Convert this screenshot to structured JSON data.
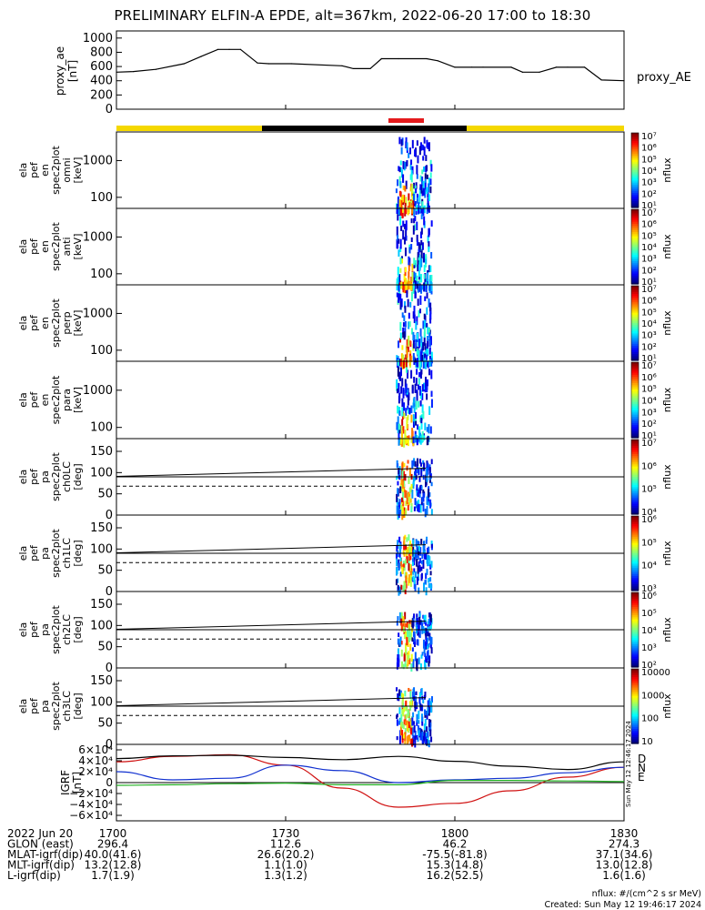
{
  "title": "PRELIMINARY ELFIN-A EPDE, alt=367km, 2022-06-20 17:00 to 18:30",
  "footer": {
    "units": "nflux: #/(cm^2 s sr MeV)",
    "created": "Created: Sun May 12 19:46:17 2024",
    "side_stamp": "Sun May 12 12:46:17 2024"
  },
  "colors": {
    "bar_yellow": "#f5d800",
    "bar_black": "#000000",
    "bar_red": "#e41a1c",
    "b_north": "#d01010",
    "b_east": "#20b020",
    "b_down": "#1030d0",
    "b_total": "#000000"
  },
  "labels": {
    "proxy_ae_side": "proxy_AE",
    "colorbar_unit": "nflux",
    "grf_side": [
      "D",
      "N",
      "E"
    ]
  },
  "chart_data": [
    {
      "type": "line",
      "id": "proxy_ae",
      "ylabel": [
        "proxy_ae",
        "[nT]"
      ],
      "yticks": [
        0,
        200,
        400,
        600,
        800,
        1000
      ],
      "ylim": [
        0,
        1100
      ],
      "x_minutes": [
        0,
        3,
        7,
        12,
        15,
        18,
        20,
        22,
        25,
        27,
        31,
        40,
        42,
        45,
        47,
        50,
        55,
        57,
        60,
        63,
        65,
        70,
        72,
        75,
        78,
        80,
        83,
        86,
        90
      ],
      "values": [
        520,
        530,
        560,
        640,
        740,
        840,
        840,
        840,
        650,
        640,
        640,
        610,
        570,
        570,
        710,
        710,
        710,
        680,
        590,
        590,
        590,
        590,
        520,
        520,
        590,
        590,
        590,
        410,
        400
      ]
    },
    {
      "type": "heatmap",
      "id": "en_omni",
      "ylabel": [
        "ela",
        "pef",
        "en",
        "spec2plot",
        "omni",
        "[keV]"
      ],
      "yaxis": "log",
      "yticks": [
        100,
        1000
      ],
      "ylim": [
        50,
        6000
      ],
      "colorbar": {
        "ticks": [
          "10¹",
          "10²",
          "10³",
          "10⁴",
          "10⁵",
          "10⁶",
          "10⁷"
        ],
        "label": "nflux"
      }
    },
    {
      "type": "heatmap",
      "id": "en_anti",
      "ylabel": [
        "ela",
        "pef",
        "en",
        "spec2plot",
        "anti",
        "[keV]"
      ],
      "yaxis": "log",
      "yticks": [
        100,
        1000
      ],
      "ylim": [
        50,
        6000
      ],
      "colorbar": {
        "ticks": [
          "10¹",
          "10²",
          "10³",
          "10⁴",
          "10⁵",
          "10⁶",
          "10⁷"
        ],
        "label": "nflux"
      }
    },
    {
      "type": "heatmap",
      "id": "en_perp",
      "ylabel": [
        "ela",
        "pef",
        "en",
        "spec2plot",
        "perp",
        "[keV]"
      ],
      "yaxis": "log",
      "yticks": [
        100,
        1000
      ],
      "ylim": [
        50,
        6000
      ],
      "colorbar": {
        "ticks": [
          "10¹",
          "10²",
          "10³",
          "10⁴",
          "10⁵",
          "10⁶",
          "10⁷"
        ],
        "label": "nflux"
      }
    },
    {
      "type": "heatmap",
      "id": "en_para",
      "ylabel": [
        "ela",
        "pef",
        "en",
        "spec2plot",
        "para",
        "[keV]"
      ],
      "yaxis": "log",
      "yticks": [
        100,
        1000
      ],
      "ylim": [
        50,
        6000
      ],
      "colorbar": {
        "ticks": [
          "10¹",
          "10²",
          "10³",
          "10⁴",
          "10⁵",
          "10⁶",
          "10⁷"
        ],
        "label": "nflux"
      }
    },
    {
      "type": "heatmap",
      "id": "pa_ch0",
      "ylabel": [
        "ela",
        "pef",
        "pa",
        "spec2plot",
        "ch0LC",
        "[deg]"
      ],
      "yaxis": "linear",
      "yticks": [
        0,
        50,
        100,
        150
      ],
      "ylim": [
        0,
        180
      ],
      "colorbar": {
        "ticks": [
          "10⁴",
          "10⁵",
          "10⁶",
          "10⁷"
        ],
        "label": "nflux"
      }
    },
    {
      "type": "heatmap",
      "id": "pa_ch1",
      "ylabel": [
        "ela",
        "pef",
        "pa",
        "spec2plot",
        "ch1LC",
        "[deg]"
      ],
      "yaxis": "linear",
      "yticks": [
        0,
        50,
        100,
        150
      ],
      "ylim": [
        0,
        180
      ],
      "colorbar": {
        "ticks": [
          "10³",
          "10⁴",
          "10⁵",
          "10⁶"
        ],
        "label": "nflux"
      }
    },
    {
      "type": "heatmap",
      "id": "pa_ch2",
      "ylabel": [
        "ela",
        "pef",
        "pa",
        "spec2plot",
        "ch2LC",
        "[deg]"
      ],
      "yaxis": "linear",
      "yticks": [
        0,
        50,
        100,
        150
      ],
      "ylim": [
        0,
        180
      ],
      "colorbar": {
        "ticks": [
          "10²",
          "10³",
          "10⁴",
          "10⁵",
          "10⁶"
        ],
        "label": "nflux"
      }
    },
    {
      "type": "heatmap",
      "id": "pa_ch3",
      "ylabel": [
        "ela",
        "pef",
        "pa",
        "spec2plot",
        "ch3LC",
        "[deg]"
      ],
      "yaxis": "linear",
      "yticks": [
        0,
        50,
        100,
        150
      ],
      "ylim": [
        0,
        180
      ],
      "colorbar": {
        "ticks": [
          "10",
          "100",
          "1000",
          "10000"
        ],
        "label": "nflux"
      }
    },
    {
      "type": "line",
      "id": "igrf",
      "ylabel": [
        "IGRF",
        "[nT]"
      ],
      "yticks": [
        "6×10⁴",
        "4×10⁴",
        "2×10⁴",
        "0",
        "−2×10⁴",
        "−4×10⁴",
        "−6×10⁴"
      ],
      "ylim": [
        -70000,
        70000
      ],
      "x_minutes": [
        0,
        10,
        20,
        30,
        40,
        50,
        60,
        70,
        80,
        90
      ],
      "series": [
        {
          "name": "N",
          "values": [
            38000,
            48000,
            51000,
            32000,
            -10000,
            -45000,
            -38000,
            -15000,
            10000,
            28000
          ]
        },
        {
          "name": "D",
          "values": [
            20000,
            5000,
            8000,
            32000,
            22000,
            0,
            5000,
            8000,
            18000,
            28000
          ]
        },
        {
          "name": "E",
          "values": [
            -5000,
            -4000,
            -2000,
            -1000,
            -4000,
            -4000,
            4000,
            4000,
            3000,
            2000
          ]
        },
        {
          "name": "total",
          "values": [
            44000,
            49000,
            50000,
            46000,
            42000,
            48000,
            39000,
            30000,
            24000,
            38000
          ]
        }
      ]
    }
  ],
  "xaxis": {
    "ticks": [
      "1700",
      "1730",
      "1800",
      "1830"
    ],
    "rows": [
      {
        "label": "2022 Jun 20",
        "values": [
          "1700",
          "1730",
          "1800",
          "1830"
        ]
      },
      {
        "label": "GLON (east)",
        "values": [
          "296.4",
          "112.6",
          "46.2",
          "274.3"
        ]
      },
      {
        "label": "MLAT-igrf(dip)",
        "values": [
          "40.0(41.6)",
          "26.6(20.2)",
          "-75.5(-81.8)",
          "37.1(34.6)"
        ]
      },
      {
        "label": "MLT-igrf(dip)",
        "values": [
          "13.2(12.8)",
          "1.1(1.0)",
          "15.3(14.8)",
          "13.0(12.8)"
        ]
      },
      {
        "label": "L-igrf(dip)",
        "values": [
          "1.7(1.9)",
          "1.3(1.2)",
          "16.2(52.5)",
          "1.6(1.6)"
        ]
      }
    ]
  }
}
